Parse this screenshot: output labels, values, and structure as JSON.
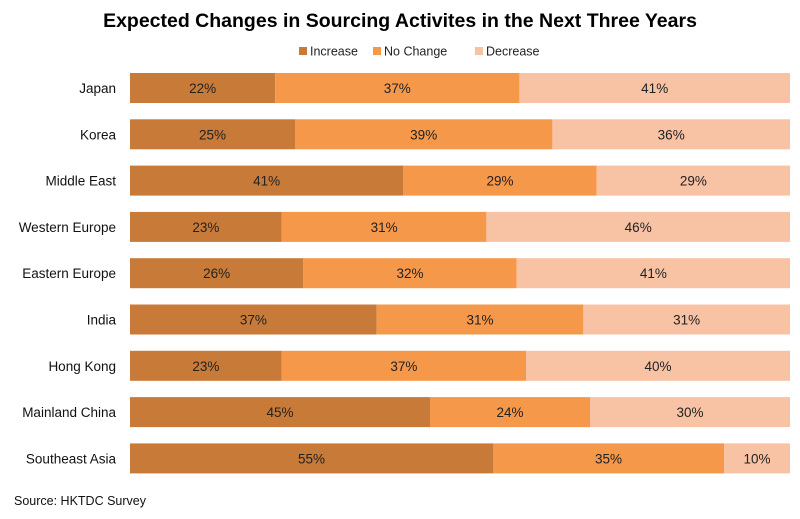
{
  "chart_data": {
    "type": "bar",
    "orientation": "horizontal",
    "stacked": true,
    "title": "Expected Changes in Sourcing Activites in the Next Three Years",
    "categories": [
      "Japan",
      "Korea",
      "Middle East",
      "Western Europe",
      "Eastern Europe",
      "India",
      "Hong Kong",
      "Mainland China",
      "Southeast Asia"
    ],
    "series": [
      {
        "name": "Increase",
        "color": "#c87a38",
        "values": [
          22,
          25,
          41,
          23,
          26,
          37,
          23,
          45,
          55
        ]
      },
      {
        "name": "No Change",
        "color": "#f5984a",
        "values": [
          37,
          39,
          29,
          31,
          32,
          31,
          37,
          24,
          35
        ]
      },
      {
        "name": "Decrease",
        "color": "#f8c2a4",
        "values": [
          41,
          36,
          29,
          46,
          41,
          31,
          40,
          30,
          10
        ]
      }
    ],
    "value_suffix": "%",
    "legend_position": "top",
    "xlabel": "",
    "ylabel": "",
    "source": "Source: HKTDC Survey"
  }
}
